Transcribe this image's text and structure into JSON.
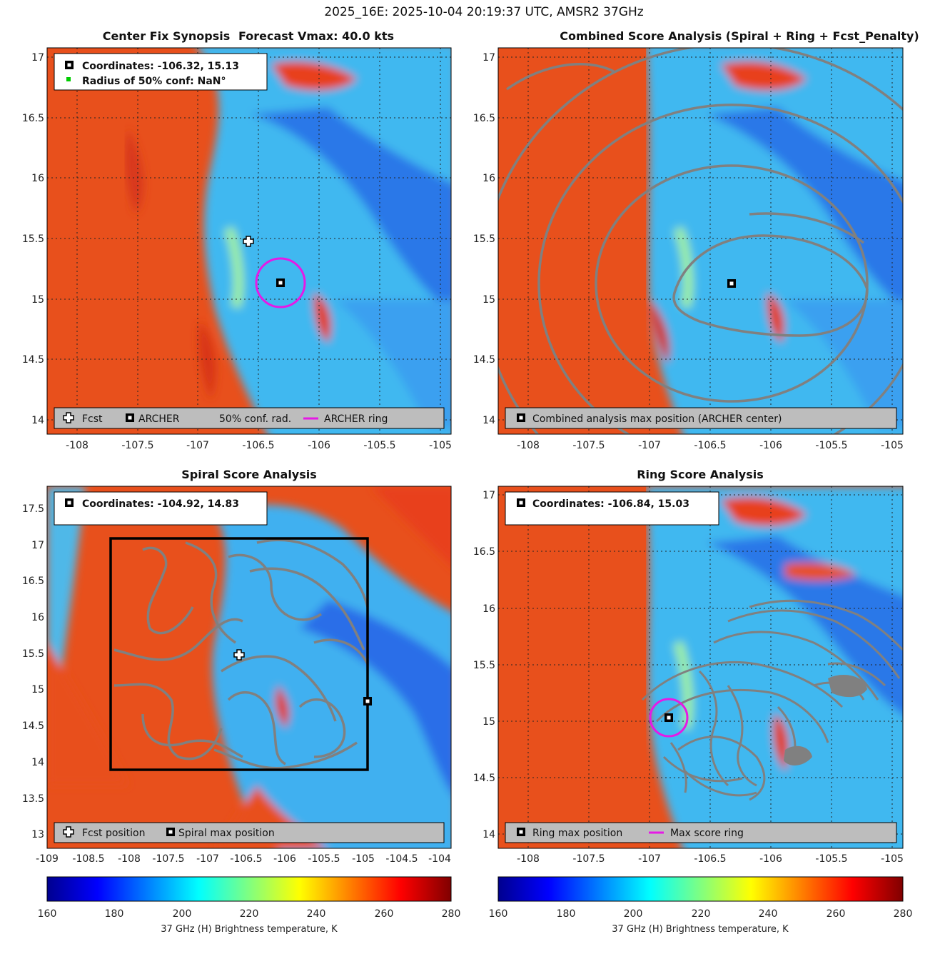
{
  "figure_title": "2025_16E: 2025-10-04 20:19:37 UTC, AMSR2 37GHz",
  "colors": {
    "archer_ring": "#e619e6",
    "contour": "#808080",
    "conf_marker": "#00cc00",
    "legend_bg": "#bdbdbd"
  },
  "chart_data": [
    {
      "type": "heatmap",
      "id": "synopsis",
      "title_left": "Center Fix Synopsis",
      "title_right": "Forecast Vmax: 40.0 kts",
      "xlim": [
        -108.2,
        -104.9
      ],
      "ylim": [
        13.9,
        17.1
      ],
      "xticks": [
        "-108",
        "-107.5",
        "-107",
        "-106.5",
        "-106",
        "-105.5",
        "-105"
      ],
      "yticks": [
        "14",
        "14.5",
        "15",
        "15.5",
        "16",
        "16.5",
        "17"
      ],
      "grid": "dotted",
      "info_box": [
        "Coordinates: -106.32, 15.13",
        "Radius of 50% conf: NaN°"
      ],
      "legend": [
        "Fcst",
        "ARCHER",
        "50% conf. rad.",
        "ARCHER ring"
      ],
      "legend_placement": "bottom",
      "markers": {
        "fcst": {
          "lon": -106.57,
          "lat": 15.48
        },
        "archer": {
          "lon": -106.32,
          "lat": 15.13
        }
      },
      "ring": {
        "lon": -106.32,
        "lat": 15.13,
        "radius_deg": 0.2
      }
    },
    {
      "type": "heatmap",
      "id": "combined",
      "title": "Combined Score Analysis (Spiral + Ring + Fcst_Penalty)",
      "xlim": [
        -108.2,
        -104.9
      ],
      "ylim": [
        13.9,
        17.1
      ],
      "xticks": [
        "-108",
        "-107.5",
        "-107",
        "-106.5",
        "-106",
        "-105.5",
        "-105"
      ],
      "yticks": [
        "14",
        "14.5",
        "15",
        "15.5",
        "16",
        "16.5",
        "17"
      ],
      "grid": "dotted",
      "legend": [
        "Combined analysis max position (ARCHER center)"
      ],
      "legend_placement": "bottom",
      "markers": {
        "archer": {
          "lon": -106.32,
          "lat": 15.13
        }
      }
    },
    {
      "type": "heatmap",
      "id": "spiral",
      "title": "Spiral Score Analysis",
      "xlim": [
        -109.0,
        -103.9
      ],
      "ylim": [
        12.8,
        17.8
      ],
      "xticks": [
        "-109",
        "-108.5",
        "-108",
        "-107.5",
        "-107",
        "-106.5",
        "-106",
        "-105.5",
        "-105",
        "-104.5",
        "-104"
      ],
      "yticks": [
        "13",
        "13.5",
        "14",
        "14.5",
        "15",
        "15.5",
        "16",
        "16.5",
        "17",
        "17.5"
      ],
      "grid": "off",
      "info_box": [
        "Coordinates: -104.92, 14.83"
      ],
      "legend": [
        "Fcst position",
        "Spiral max position"
      ],
      "legend_placement": "bottom",
      "search_box": {
        "lon_min": -108.2,
        "lon_max": -104.92,
        "lat_min": 13.9,
        "lat_max": 17.1
      },
      "markers": {
        "fcst": {
          "lon": -106.57,
          "lat": 15.48
        },
        "spiral_max": {
          "lon": -104.92,
          "lat": 14.83
        }
      }
    },
    {
      "type": "heatmap",
      "id": "ring",
      "title": "Ring Score Analysis",
      "xlim": [
        -108.2,
        -104.9
      ],
      "ylim": [
        13.9,
        17.1
      ],
      "xticks": [
        "-108",
        "-107.5",
        "-107",
        "-106.5",
        "-106",
        "-105.5",
        "-105"
      ],
      "yticks": [
        "14",
        "14.5",
        "15",
        "15.5",
        "16",
        "16.5",
        "17"
      ],
      "grid": "dotted",
      "info_box": [
        "Coordinates: -106.84, 15.03"
      ],
      "legend": [
        "Ring max position",
        "Max score ring"
      ],
      "legend_placement": "bottom",
      "markers": {
        "ring_max": {
          "lon": -106.84,
          "lat": 15.03
        }
      },
      "ring": {
        "lon": -106.84,
        "lat": 15.03,
        "radius_deg": 0.15
      }
    }
  ],
  "colorbars": [
    {
      "id": "colorbar-left",
      "ticks": [
        "160",
        "180",
        "200",
        "220",
        "240",
        "260",
        "280"
      ],
      "range": [
        160,
        280
      ],
      "label": "37 GHz (H) Brightness temperature, K",
      "colormap": "jet"
    },
    {
      "id": "colorbar-right",
      "ticks": [
        "160",
        "180",
        "200",
        "220",
        "240",
        "260",
        "280"
      ],
      "range": [
        160,
        280
      ],
      "label": "37 GHz (H) Brightness temperature, K",
      "colormap": "jet"
    }
  ]
}
